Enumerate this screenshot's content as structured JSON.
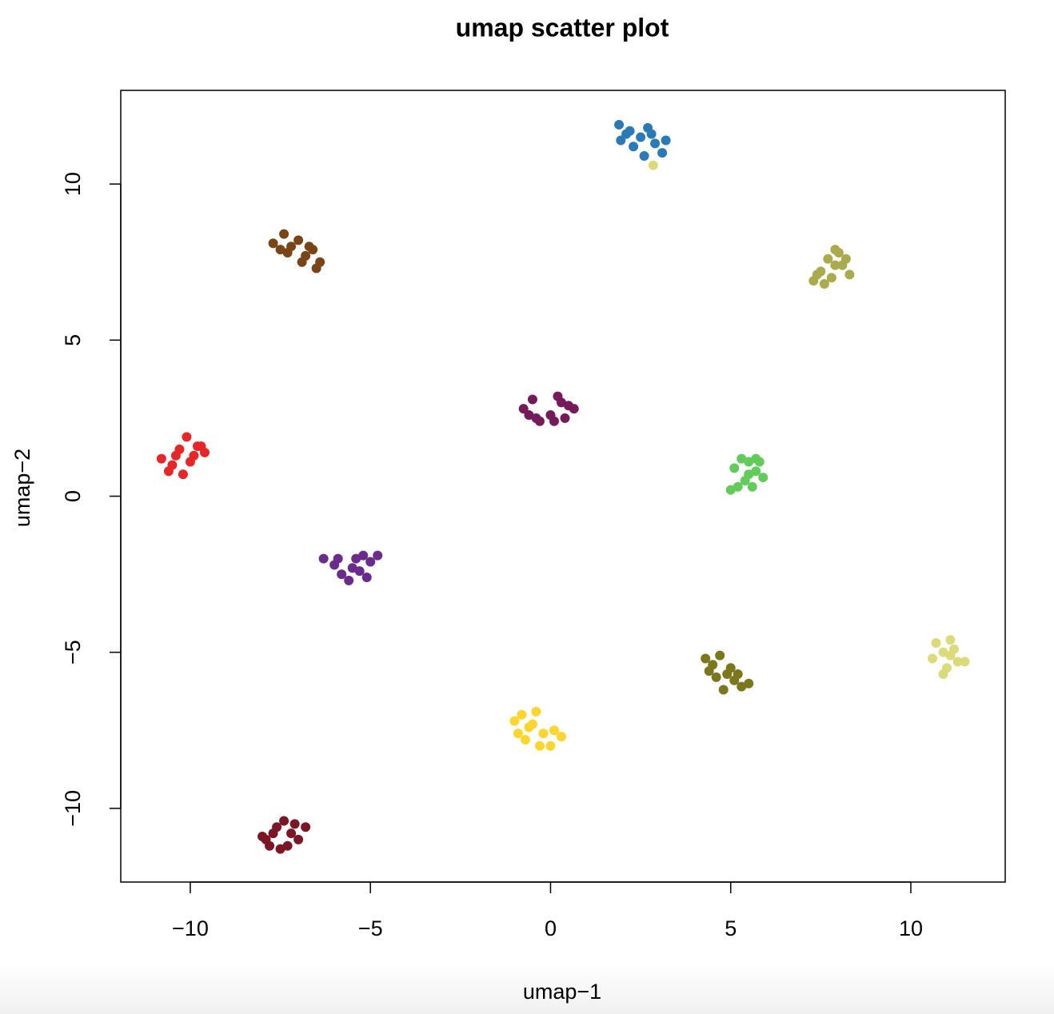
{
  "chart_data": {
    "type": "scatter",
    "title": "umap scatter plot",
    "x_label": "umap−1",
    "y_label": "umap−2",
    "xlim": [
      -11.93,
      12.62
    ],
    "ylim": [
      -12.36,
      13.0
    ],
    "xticks": [
      {
        "value": -10,
        "label": "−10"
      },
      {
        "value": -5,
        "label": "−5"
      },
      0,
      5,
      10
    ],
    "yticks": [
      {
        "value": -10,
        "label": "−10"
      },
      {
        "value": -5,
        "label": "−5"
      },
      0,
      5,
      10
    ],
    "series": [
      {
        "color": "#2a7ab8",
        "x": [
          1.9,
          2.1,
          2.3,
          2.5,
          2.7,
          2.9,
          3.1,
          2.2,
          2.6,
          3.2,
          1.95,
          2.8
        ],
        "y": [
          11.9,
          11.6,
          11.2,
          11.5,
          11.8,
          11.3,
          11.0,
          11.7,
          10.9,
          11.4,
          11.4,
          11.6
        ]
      },
      {
        "color": "#7a4516",
        "x": [
          -7.7,
          -7.4,
          -7.2,
          -7.0,
          -6.8,
          -6.6,
          -6.4,
          -7.3,
          -6.9,
          -6.5,
          -7.5,
          -6.7
        ],
        "y": [
          8.1,
          8.4,
          8.0,
          8.2,
          7.7,
          7.9,
          7.5,
          7.8,
          7.5,
          7.3,
          7.9,
          8.0
        ]
      },
      {
        "color": "#aaaa4e",
        "x": [
          7.3,
          7.5,
          7.7,
          7.9,
          8.1,
          8.3,
          7.6,
          7.8,
          8.0,
          7.4,
          7.9,
          8.2
        ],
        "y": [
          6.9,
          7.2,
          7.6,
          7.9,
          7.4,
          7.1,
          6.8,
          7.0,
          7.8,
          7.1,
          7.4,
          7.6
        ]
      },
      {
        "color": "#751a5a",
        "x": [
          -0.75,
          -0.5,
          -0.3,
          0,
          0.2,
          0.5,
          0.65,
          -0.4,
          0.1,
          0.4,
          -0.6,
          0.3
        ],
        "y": [
          2.8,
          3.1,
          2.4,
          2.6,
          3.2,
          2.9,
          2.8,
          2.5,
          2.4,
          2.5,
          2.6,
          3.0
        ]
      },
      {
        "color": "#e52728",
        "x": [
          -10.8,
          -10.5,
          -10.3,
          -10.1,
          -9.9,
          -9.7,
          -10.6,
          -10.2,
          -10.0,
          -9.6,
          -10.4,
          -9.8
        ],
        "y": [
          1.2,
          1.0,
          1.5,
          1.9,
          1.3,
          1.6,
          0.8,
          0.7,
          1.1,
          1.4,
          1.3,
          1.6
        ]
      },
      {
        "color": "#62cb5a",
        "x": [
          5.1,
          5.3,
          5.5,
          5.7,
          5.9,
          5.2,
          5.4,
          5.6,
          5.8,
          5.0,
          5.5,
          5.7
        ],
        "y": [
          0.9,
          1.2,
          1.1,
          0.8,
          0.6,
          0.3,
          0.5,
          0.3,
          1.1,
          0.2,
          0.7,
          1.2
        ]
      },
      {
        "color": "#6a2b8c",
        "x": [
          -6.3,
          -6.0,
          -5.8,
          -5.5,
          -5.2,
          -5.0,
          -4.8,
          -5.6,
          -5.3,
          -5.9,
          -5.4,
          -5.1
        ],
        "y": [
          -2.0,
          -2.2,
          -2.5,
          -2.3,
          -1.9,
          -2.1,
          -1.9,
          -2.7,
          -2.4,
          -2.0,
          -2.0,
          -2.6
        ]
      },
      {
        "color": "#7a771c",
        "x": [
          4.3,
          4.5,
          4.7,
          4.9,
          5.1,
          5.3,
          5.5,
          4.6,
          4.8,
          5.0,
          5.2,
          4.4
        ],
        "y": [
          -5.2,
          -5.4,
          -5.1,
          -5.7,
          -5.9,
          -6.1,
          -6.0,
          -5.8,
          -6.2,
          -5.5,
          -5.7,
          -5.6
        ]
      },
      {
        "color": "#dcdb7c",
        "x": [
          10.7,
          10.9,
          11.1,
          11.3,
          11.0,
          10.6,
          11.2,
          11.5,
          10.9,
          11.1,
          2.85
        ],
        "y": [
          -4.7,
          -5.0,
          -4.6,
          -5.3,
          -5.5,
          -5.2,
          -4.9,
          -5.3,
          -5.7,
          -5.1,
          10.6
        ]
      },
      {
        "color": "#fcd530",
        "x": [
          -1.0,
          -0.8,
          -0.6,
          -0.4,
          -0.2,
          0.1,
          0.3,
          -0.7,
          -0.3,
          0.0,
          -0.5,
          -0.9
        ],
        "y": [
          -7.2,
          -7.0,
          -7.4,
          -6.9,
          -7.6,
          -7.5,
          -7.7,
          -7.8,
          -8.0,
          -8.0,
          -7.3,
          -7.6
        ]
      },
      {
        "color": "#7b1724",
        "x": [
          -8.0,
          -7.8,
          -7.6,
          -7.4,
          -7.2,
          -7.0,
          -6.8,
          -7.5,
          -7.3,
          -7.7,
          -7.1,
          -7.9
        ],
        "y": [
          -10.9,
          -11.2,
          -10.6,
          -10.4,
          -10.8,
          -11.0,
          -10.6,
          -11.3,
          -11.2,
          -10.8,
          -10.5,
          -11.0
        ]
      }
    ]
  }
}
